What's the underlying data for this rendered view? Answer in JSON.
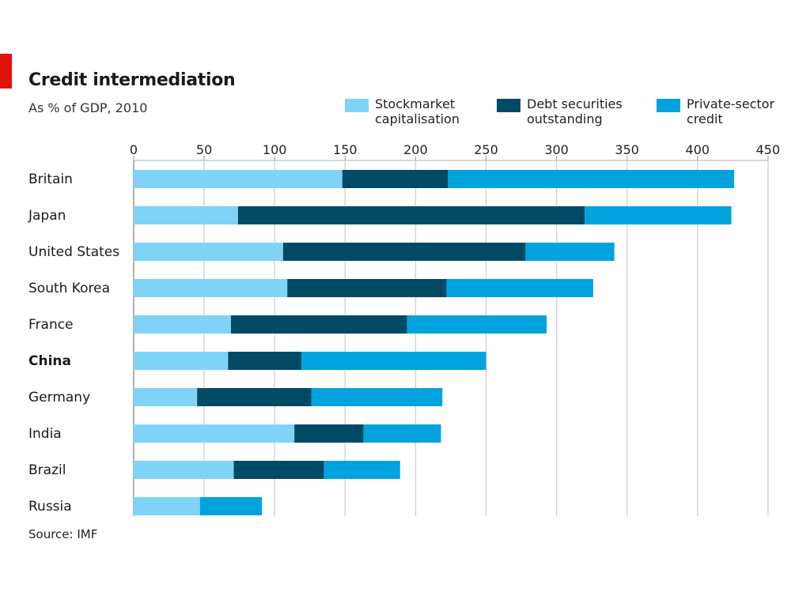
{
  "chart_data": {
    "type": "bar",
    "orientation": "horizontal",
    "stacked": true,
    "title": "Credit intermediation",
    "subtitle": "As % of GDP, 2010",
    "source": "Source: IMF",
    "categories": [
      "Britain",
      "Japan",
      "United States",
      "South Korea",
      "France",
      "China",
      "Germany",
      "India",
      "Brazil",
      "Russia"
    ],
    "highlight_category": "China",
    "series": [
      {
        "name": "Stockmarket\ncapitalisation",
        "color": "#7fd3f7",
        "values": [
          148,
          74,
          106,
          109,
          69,
          67,
          45,
          114,
          71,
          47
        ]
      },
      {
        "name": "Debt securities\noutstanding",
        "color": "#004a65",
        "values": [
          75,
          246,
          172,
          113,
          125,
          52,
          81,
          49,
          64,
          0
        ]
      },
      {
        "name": "Private-sector\ncredit",
        "color": "#00a3de",
        "values": [
          203,
          104,
          63,
          104,
          99,
          131,
          93,
          55,
          54,
          44
        ]
      }
    ],
    "xticks": [
      0,
      50,
      100,
      150,
      200,
      250,
      300,
      350,
      400,
      450
    ],
    "xlim": [
      0,
      450
    ],
    "grid": true,
    "legend_position": "top"
  }
}
